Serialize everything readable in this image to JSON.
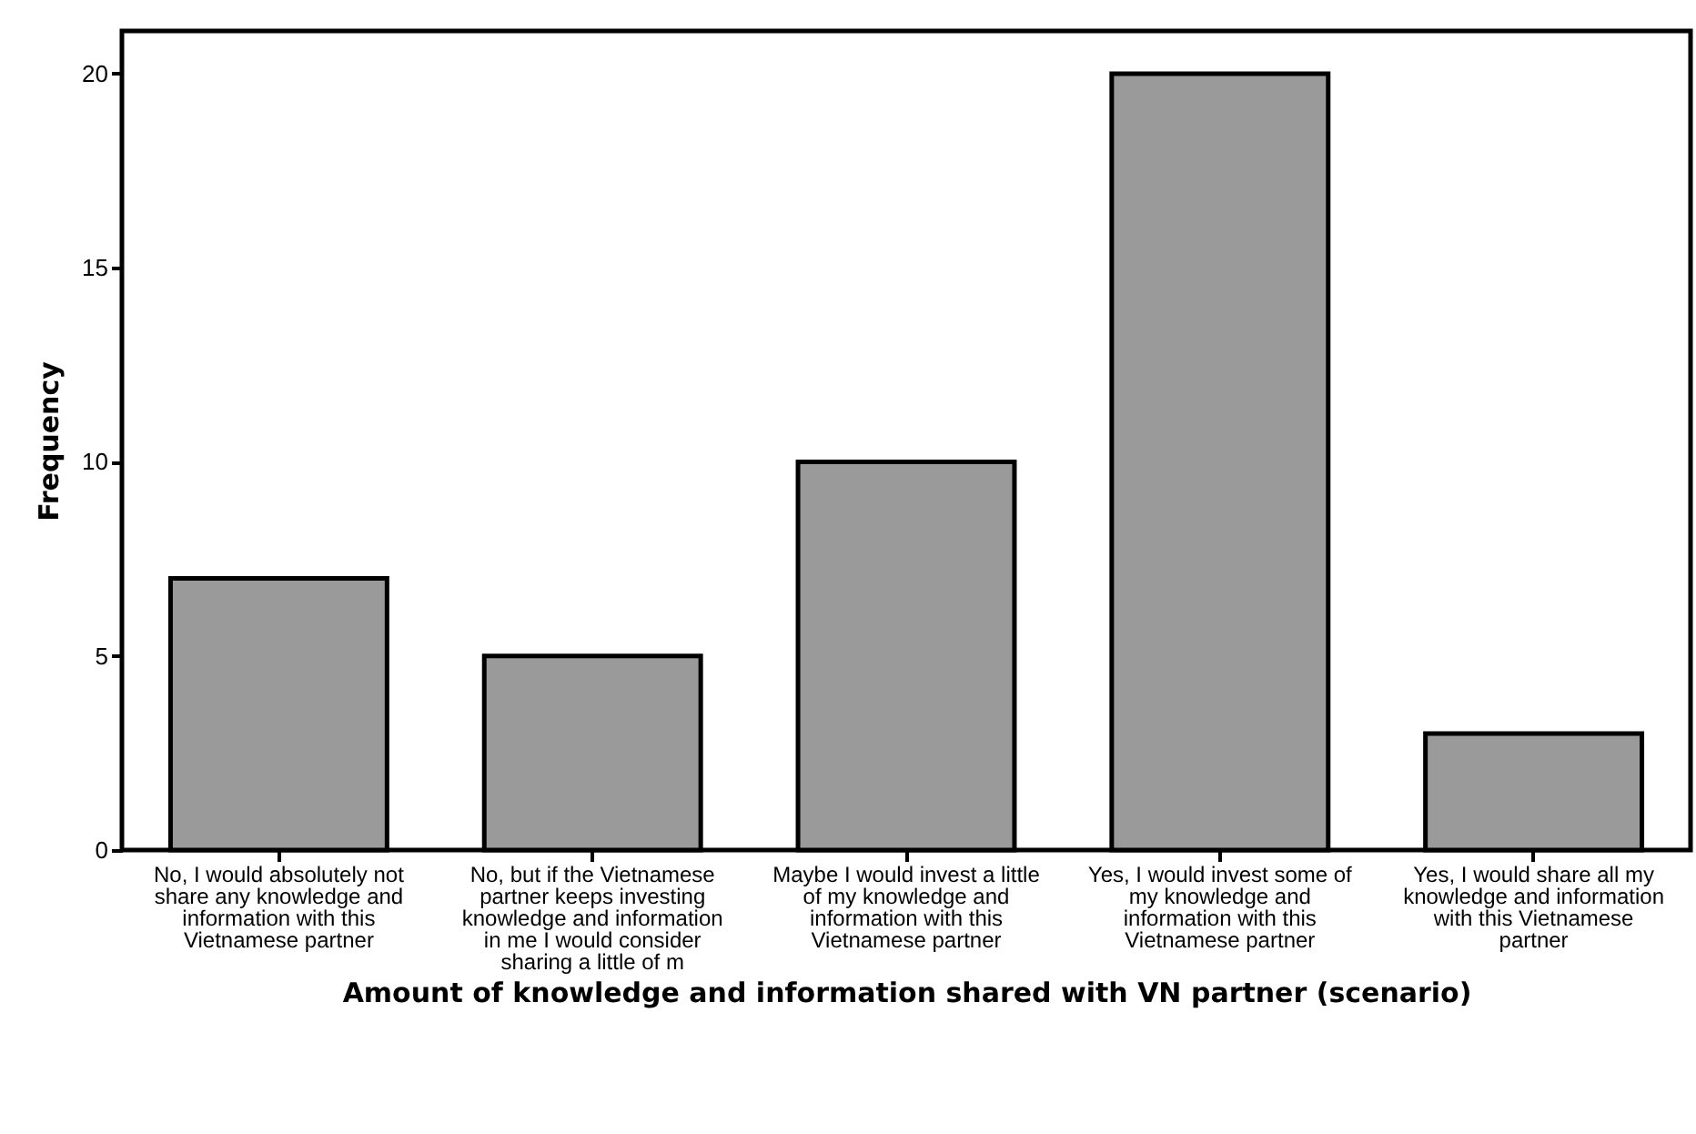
{
  "chart_data": {
    "type": "bar",
    "xlabel": "Amount of knowledge and information shared with VN partner (scenario)",
    "ylabel": "Frequency",
    "categories": [
      "No, I would absolutely not share any knowledge and information with this Vietnamese partner",
      "No, but if the Vietnamese partner keeps investing knowledge and information in me I would consider sharing a little of m",
      "Maybe I would invest a little of my knowledge and information with this Vietnamese partner",
      "Yes, I would invest some of my knowledge and information with this Vietnamese partner",
      "Yes, I would share all my knowledge and information with this Vietnamese partner"
    ],
    "values": [
      7,
      5,
      10,
      20,
      3
    ],
    "color": "#9a9a9a",
    "ylim": [
      0,
      21.1
    ],
    "yticks": [
      0,
      5,
      10,
      15,
      20
    ],
    "grid": false
  }
}
